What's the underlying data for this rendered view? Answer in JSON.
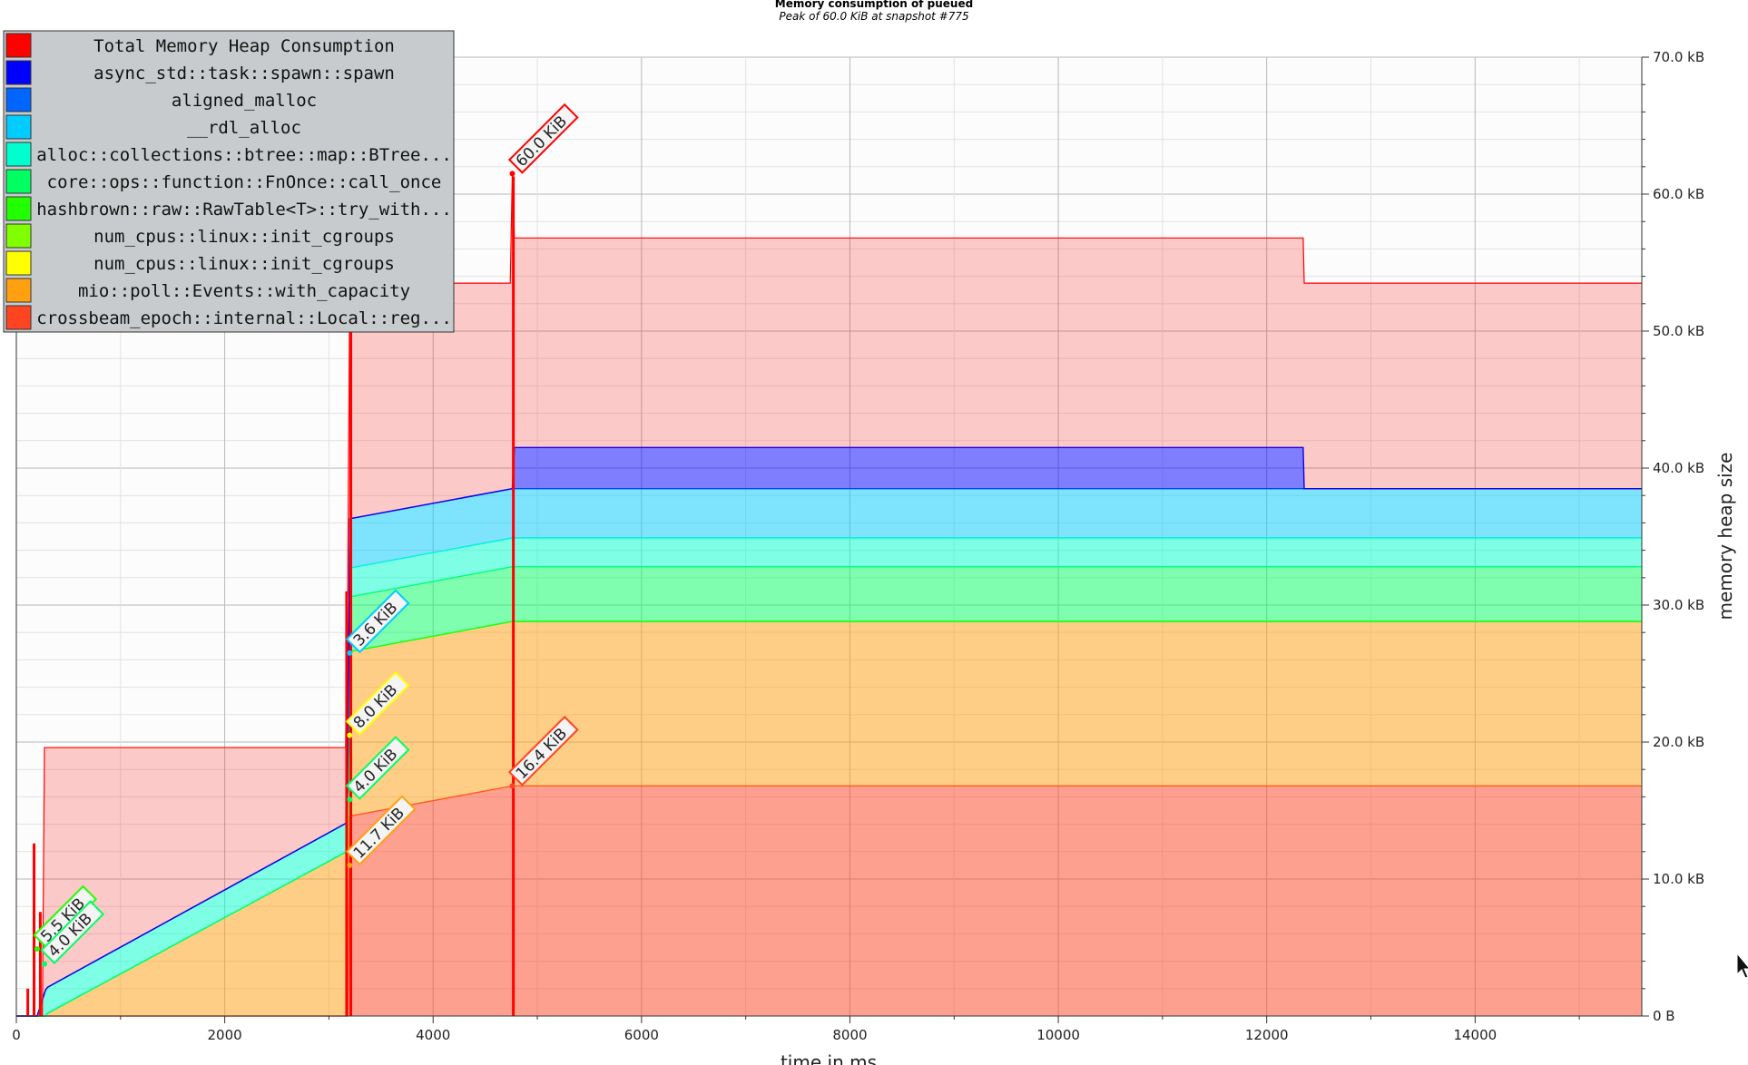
{
  "chart_data": {
    "type": "area",
    "title": "Memory consumption of pueued",
    "subtitle": "Peak of 60.0 KiB at snapshot #775",
    "xlabel": "time in ms",
    "ylabel": "memory heap size",
    "xlim": [
      0,
      15600
    ],
    "ylim": [
      0,
      70
    ],
    "x_ticks": [
      0,
      2000,
      4000,
      6000,
      8000,
      10000,
      12000,
      14000
    ],
    "x_tick_labels": [
      "0",
      "2000",
      "4000",
      "6000",
      "8000",
      "10000",
      "12000",
      "14000"
    ],
    "y_ticks": [
      0,
      10,
      20,
      30,
      40,
      50,
      60,
      70
    ],
    "y_tick_labels": [
      "0 B",
      "10.0 kB",
      "20.0 kB",
      "30.0 kB",
      "40.0 kB",
      "50.0 kB",
      "60.0 kB",
      "70.0 kB"
    ],
    "grid": true,
    "legend_position": "top-left",
    "series": [
      {
        "name": "crossbeam_epoch::internal::Local::reg...",
        "color": "#ff4422",
        "points": [
          [
            0,
            0
          ],
          [
            3180,
            0
          ],
          [
            3200,
            14.6
          ],
          [
            4760,
            16.8
          ],
          [
            15600,
            16.8
          ]
        ]
      },
      {
        "name": "mio::poll::Events::with_capacity",
        "color": "#ffa010",
        "points": [
          [
            0,
            0
          ],
          [
            100,
            0
          ],
          [
            280,
            0
          ],
          [
            300,
            0.2
          ],
          [
            3170,
            12.0
          ],
          [
            3200,
            12.0
          ],
          [
            4760,
            12.0
          ],
          [
            15600,
            12.0
          ]
        ]
      },
      {
        "name": "num_cpus::linux::init_cgroups",
        "color": "#ffff00",
        "points": [
          [
            0,
            0
          ],
          [
            15600,
            0
          ]
        ]
      },
      {
        "name": "num_cpus::linux::init_cgroups",
        "color": "#80ff00",
        "points": [
          [
            0,
            0
          ],
          [
            15600,
            0
          ]
        ]
      },
      {
        "name": "hashbrown::raw::RawTable<T>::try_with...",
        "color": "#22ff00",
        "points": [
          [
            0,
            0
          ],
          [
            15600,
            0
          ]
        ]
      },
      {
        "name": "core::ops::function::FnOnce::call_once",
        "color": "#00ff60",
        "points": [
          [
            0,
            0
          ],
          [
            3170,
            0
          ],
          [
            3200,
            4.0
          ],
          [
            4760,
            4.0
          ],
          [
            15600,
            4.0
          ]
        ]
      },
      {
        "name": "alloc::collections::btree::map::BTree...",
        "color": "#00ffcc",
        "points": [
          [
            0,
            0
          ],
          [
            200,
            0
          ],
          [
            280,
            1.9
          ],
          [
            3170,
            2.1
          ],
          [
            3200,
            2.1
          ],
          [
            4760,
            2.1
          ],
          [
            15600,
            2.1
          ]
        ]
      },
      {
        "name": "__rdl_alloc",
        "color": "#00ccff",
        "points": [
          [
            0,
            0
          ],
          [
            3170,
            0
          ],
          [
            3200,
            3.6
          ],
          [
            4760,
            3.6
          ],
          [
            15600,
            3.6
          ]
        ]
      },
      {
        "name": "aligned_malloc",
        "color": "#0066ff",
        "points": [
          [
            0,
            0
          ],
          [
            15600,
            0
          ]
        ]
      },
      {
        "name": "async_std::task::spawn::spawn",
        "color": "#0000ff",
        "points": [
          [
            0,
            0
          ],
          [
            4760,
            0
          ],
          [
            4780,
            3.0
          ],
          [
            12350,
            3.0
          ],
          [
            12360,
            0
          ],
          [
            15600,
            0
          ]
        ]
      }
    ],
    "total": {
      "name": "Total Memory Heap Consumption",
      "color": "#ff0000",
      "points": [
        [
          0,
          0
        ],
        [
          250,
          0
        ],
        [
          270,
          19.6
        ],
        [
          3160,
          19.6
        ],
        [
          3180,
          31.0
        ],
        [
          3200,
          53.5
        ],
        [
          4740,
          53.5
        ],
        [
          4760,
          61.5
        ],
        [
          4780,
          56.8
        ],
        [
          12350,
          56.8
        ],
        [
          12360,
          53.5
        ],
        [
          15600,
          53.5
        ]
      ],
      "spikes": [
        [
          110,
          2.0
        ],
        [
          170,
          12.6
        ],
        [
          230,
          7.6
        ],
        [
          3170,
          31.0
        ],
        [
          3210,
          53.5
        ],
        [
          4770,
          61.3
        ]
      ]
    },
    "annotations": [
      {
        "label": "60.0 KiB",
        "x": 4760,
        "y": 61.5,
        "color": "#ff0000"
      },
      {
        "label": "16.4 KiB",
        "x": 4760,
        "y": 16.8,
        "color": "#ff4422"
      },
      {
        "label": "3.6 KiB",
        "x": 3200,
        "y": 26.5,
        "color": "#00ccff"
      },
      {
        "label": "8.0 KiB",
        "x": 3200,
        "y": 20.5,
        "color": "#ffff00"
      },
      {
        "label": "4.0 KiB",
        "x": 3200,
        "y": 15.8,
        "color": "#00ff60"
      },
      {
        "label": "11.7 KiB",
        "x": 3200,
        "y": 11.0,
        "color": "#ffa010"
      },
      {
        "label": "5.5 KiB",
        "x": 200,
        "y": 4.9,
        "color": "#22ff00"
      },
      {
        "label": "4.0 KiB",
        "x": 270,
        "y": 3.8,
        "color": "#00ff60"
      }
    ]
  },
  "legend": [
    {
      "label": "Total Memory Heap Consumption",
      "color": "#ff0000"
    },
    {
      "label": "async_std::task::spawn::spawn",
      "color": "#0000ff"
    },
    {
      "label": "aligned_malloc",
      "color": "#0066ff"
    },
    {
      "label": "__rdl_alloc",
      "color": "#00ccff"
    },
    {
      "label": "alloc::collections::btree::map::BTree...",
      "color": "#00ffcc"
    },
    {
      "label": "core::ops::function::FnOnce::call_once",
      "color": "#00ff60"
    },
    {
      "label": "hashbrown::raw::RawTable<T>::try_with...",
      "color": "#22ff00"
    },
    {
      "label": "num_cpus::linux::init_cgroups",
      "color": "#80ff00"
    },
    {
      "label": "num_cpus::linux::init_cgroups",
      "color": "#ffff00"
    },
    {
      "label": "mio::poll::Events::with_capacity",
      "color": "#ffa010"
    },
    {
      "label": "crossbeam_epoch::internal::Local::reg...",
      "color": "#ff4422"
    }
  ],
  "cursor": {
    "icon": "mouse-pointer-icon"
  }
}
